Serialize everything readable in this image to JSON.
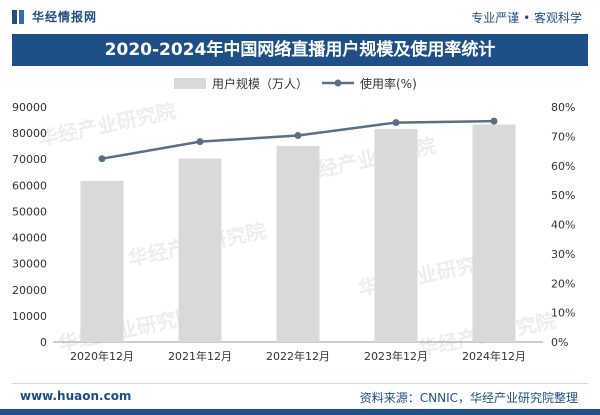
{
  "header": {
    "brand": "华经情报网",
    "slogan": "专业严谨 • 客观科学"
  },
  "title": "2020-2024年中国网络直播用户规模及使用率统计",
  "footer": {
    "url": "www.huaon.com",
    "source": "资料来源：CNNIC，华经产业研究院整理"
  },
  "colors": {
    "bar": "#d9d9d9",
    "line": "#5a6e88",
    "title_band": "#1e4f86"
  },
  "chart_data": {
    "type": "bar",
    "categories": [
      "2020年12月",
      "2021年12月",
      "2022年12月",
      "2023年12月",
      "2024年12月"
    ],
    "series": [
      {
        "name": "用户规模（万人）",
        "type": "bar",
        "axis": "left",
        "values": [
          61700,
          70300,
          75100,
          81600,
          83300
        ]
      },
      {
        "name": "使用率(%)",
        "type": "line",
        "axis": "right",
        "values": [
          62.4,
          68.2,
          70.3,
          74.7,
          75.2
        ]
      }
    ],
    "y_left": {
      "min": 0,
      "max": 90000,
      "ticks": [
        "0",
        "10000",
        "20000",
        "30000",
        "40000",
        "50000",
        "60000",
        "70000",
        "80000",
        "90000"
      ]
    },
    "y_right": {
      "min": 0,
      "max": 80,
      "ticks": [
        "0%",
        "10%",
        "20%",
        "30%",
        "40%",
        "50%",
        "60%",
        "70%",
        "80%"
      ]
    },
    "legend": [
      "用户规模（万人）",
      "使用率(%)"
    ],
    "legend_position": "top",
    "grid": false
  }
}
